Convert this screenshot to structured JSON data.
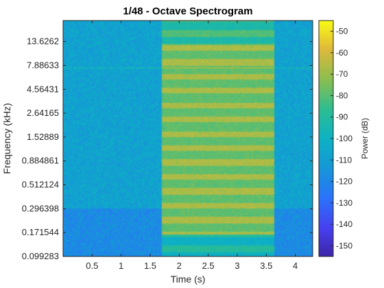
{
  "chart_data": {
    "type": "heatmap",
    "title": "1/48 - Octave Spectrogram",
    "xlabel": "Time (s)",
    "ylabel": "Frequency (kHz)",
    "colorbar_label": "Power (dB)",
    "xlim": [
      0.0,
      4.3
    ],
    "ylim_khz": [
      0.099283,
      22.05
    ],
    "y_scale": "log",
    "x_ticks": [
      0.5,
      1,
      1.5,
      2,
      2.5,
      3,
      3.5,
      4
    ],
    "x_tick_labels": [
      "0.5",
      "1",
      "1.5",
      "2",
      "2.5",
      "3",
      "3.5",
      "4"
    ],
    "y_ticks": [
      0.099283,
      0.171544,
      0.296398,
      0.512124,
      0.884861,
      1.52889,
      2.64165,
      4.56431,
      7.88633,
      13.6262
    ],
    "y_tick_labels": [
      "0.099283",
      "0.171544",
      "0.296398",
      "0.512124",
      "0.884861",
      "1.52889",
      "2.64165",
      "4.56431",
      "7.88633",
      "13.6262"
    ],
    "colorbar_ticks": [
      -50,
      -60,
      -70,
      -80,
      -90,
      -100,
      -110,
      -120,
      -130,
      -140,
      -150
    ],
    "colorbar_tick_labels": [
      "-50",
      "-60",
      "-70",
      "-80",
      "-90",
      "-100",
      "-110",
      "-120",
      "-130",
      "-140",
      "-150"
    ],
    "clim": [
      -155,
      -45
    ],
    "colormap": "parula",
    "grid": false,
    "signal_segment_s": [
      1.7,
      3.65
    ],
    "background_level_db": -108,
    "signal_level_db": -75
  }
}
